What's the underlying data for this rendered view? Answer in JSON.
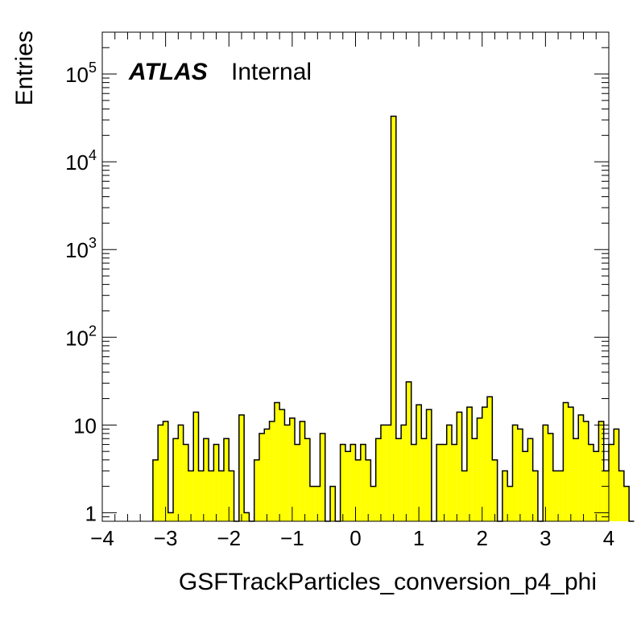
{
  "chart_data": {
    "type": "bar",
    "style": "histogram",
    "ylabel": "Entries",
    "xlabel": "GSFTrackParticles_conversion_p4_phi",
    "xlim": [
      -4,
      4
    ],
    "ylim": [
      0.8,
      300000
    ],
    "yscale": "log",
    "xticks": [
      {
        "value": -4,
        "label": "−4"
      },
      {
        "value": -3,
        "label": "−3"
      },
      {
        "value": -2,
        "label": "−2"
      },
      {
        "value": -1,
        "label": "−1"
      },
      {
        "value": 0,
        "label": "0"
      },
      {
        "value": 1,
        "label": "1"
      },
      {
        "value": 2,
        "label": "2"
      },
      {
        "value": 3,
        "label": "3"
      },
      {
        "value": 4,
        "label": "4"
      }
    ],
    "yticks": [
      {
        "value": 1,
        "base": "1",
        "exp": ""
      },
      {
        "value": 10,
        "base": "10",
        "exp": ""
      },
      {
        "value": 100,
        "base": "10",
        "exp": "2"
      },
      {
        "value": 1000,
        "base": "10",
        "exp": "3"
      },
      {
        "value": 10000,
        "base": "10",
        "exp": "4"
      },
      {
        "value": 100000,
        "base": "10",
        "exp": "5"
      }
    ],
    "grid": false,
    "fill_color": "#ffff00",
    "line_color": "#000000",
    "bin_width": 0.08,
    "bin_start": -3.2,
    "values": [
      4,
      10,
      11,
      1,
      7,
      10,
      6,
      3,
      14,
      3,
      7,
      3,
      6,
      3,
      7,
      3,
      0,
      13,
      1,
      0,
      4,
      8,
      9,
      11,
      18,
      15,
      10,
      12,
      6,
      11,
      7,
      2,
      2,
      8,
      0,
      2,
      0,
      6,
      5,
      6,
      4,
      6,
      4,
      2,
      7,
      10,
      10,
      33000,
      7,
      10,
      31,
      6,
      17,
      7,
      15,
      0,
      6,
      6,
      10,
      6,
      14,
      3,
      16,
      7,
      12,
      16,
      21,
      4,
      0,
      3,
      2,
      10,
      9,
      5,
      7,
      3,
      0,
      10,
      8,
      3,
      3,
      18,
      16,
      7,
      13,
      11,
      6,
      5,
      11,
      3,
      6,
      9,
      3,
      2,
      0
    ]
  },
  "labels": {
    "atlas": "ATLAS",
    "internal": "Internal"
  }
}
